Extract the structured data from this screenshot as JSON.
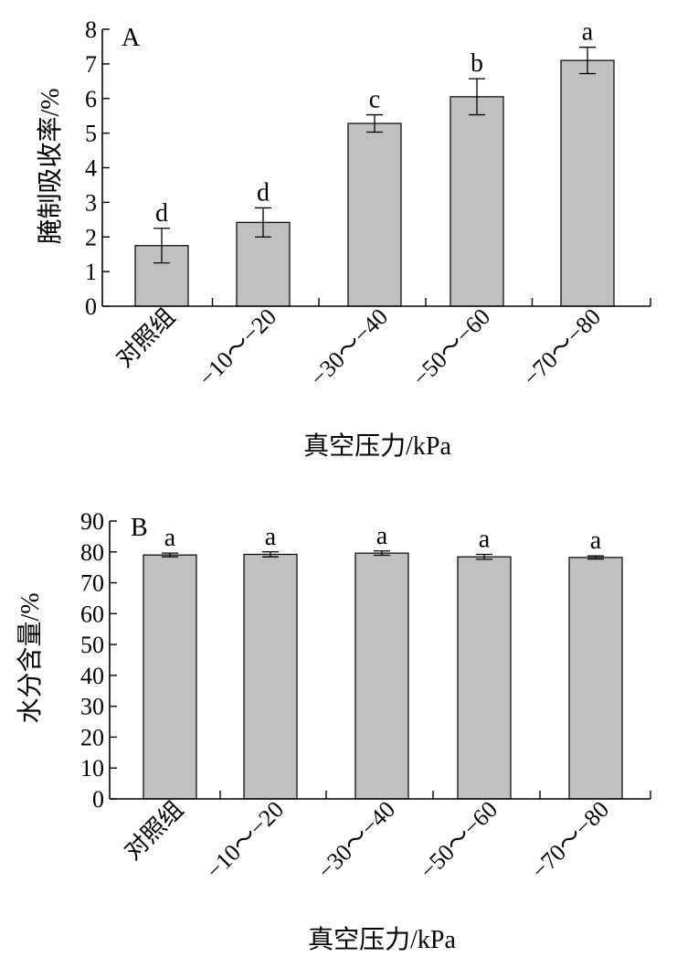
{
  "chart_data": [
    {
      "panel": "A",
      "type": "bar",
      "categories": [
        "对照组",
        "−10～−20",
        "−30～−40",
        "−50～−60",
        "−70～−80"
      ],
      "values": [
        1.75,
        2.42,
        5.28,
        6.05,
        7.1
      ],
      "errors": [
        0.5,
        0.42,
        0.25,
        0.52,
        0.38
      ],
      "significance": [
        "d",
        "d",
        "c",
        "b",
        "a"
      ],
      "xlabel": "真空压力/kPa",
      "ylabel": "腌制吸收率/%",
      "ylim": [
        0,
        8
      ],
      "yticks": [
        0,
        1,
        2,
        3,
        4,
        5,
        6,
        7,
        8
      ],
      "bar_color": "#c0c0c0",
      "grid": false
    },
    {
      "panel": "B",
      "type": "bar",
      "categories": [
        "对照组",
        "−10～−20",
        "−30～−40",
        "−50～−60",
        "−70～−80"
      ],
      "values": [
        79.0,
        79.2,
        79.6,
        78.4,
        78.2
      ],
      "errors": [
        0.6,
        0.8,
        0.7,
        0.8,
        0.5
      ],
      "significance": [
        "a",
        "a",
        "a",
        "a",
        "a"
      ],
      "xlabel": "真空压力/kPa",
      "ylabel": "水分含量/%",
      "ylim": [
        0,
        90
      ],
      "yticks": [
        0,
        10,
        20,
        30,
        40,
        50,
        60,
        70,
        80,
        90
      ],
      "bar_color": "#c0c0c0",
      "grid": false
    }
  ]
}
